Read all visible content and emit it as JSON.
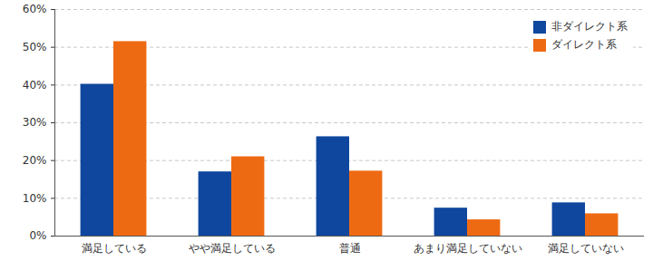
{
  "chart_data": {
    "type": "bar",
    "categories": [
      "満足している",
      "やや満足している",
      "普通",
      "あまり満足していない",
      "満足していない"
    ],
    "series": [
      {
        "name": "非ダイレクト系",
        "color": "#0f479e",
        "values": [
          40.2,
          17.0,
          26.3,
          7.4,
          8.8
        ]
      },
      {
        "name": "ダイレクト系",
        "color": "#ee6a12",
        "values": [
          51.5,
          21.0,
          17.2,
          4.3,
          5.9
        ]
      }
    ],
    "ylim": [
      0,
      60
    ],
    "yticks": [
      {
        "value": 0,
        "label": "0%"
      },
      {
        "value": 10,
        "label": "10%"
      },
      {
        "value": 20,
        "label": "20%"
      },
      {
        "value": 30,
        "label": "30%"
      },
      {
        "value": 40,
        "label": "40%"
      },
      {
        "value": 50,
        "label": "50%"
      },
      {
        "value": 60,
        "label": "60%"
      }
    ],
    "grid": true,
    "legend": "top-right"
  }
}
